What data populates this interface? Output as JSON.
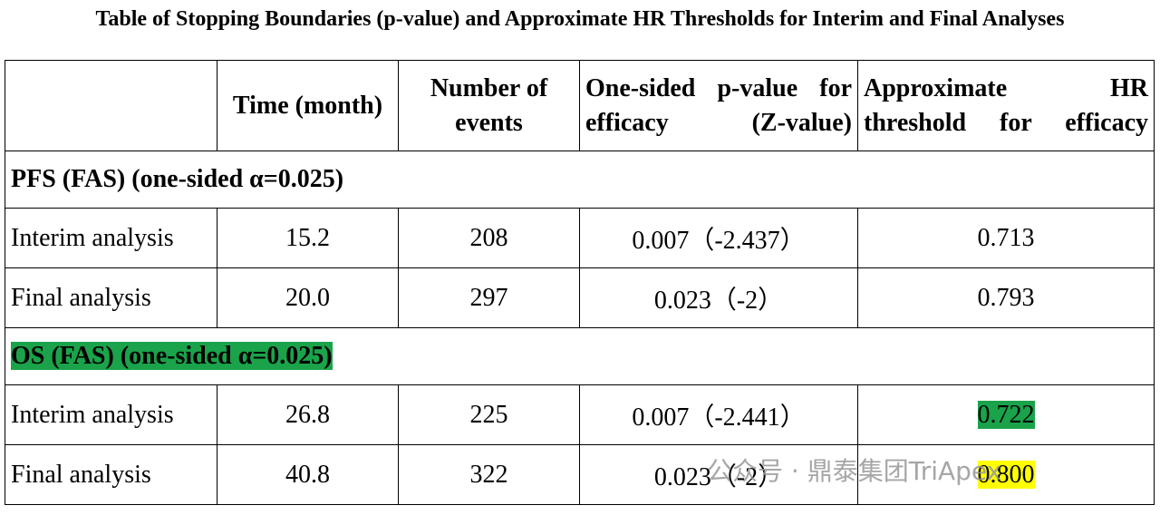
{
  "title": "Table of Stopping Boundaries (p-value) and Approximate HR Thresholds for Interim and Final Analyses",
  "table": {
    "header": [
      "",
      "Time (month)",
      "Number of events",
      "One-sided p-value for efficacy (Z-value)",
      "Approximate HR threshold for efficacy"
    ],
    "sections": [
      {
        "label": "PFS (FAS) (one-sided α=0.025)",
        "rows": [
          [
            "Interim analysis",
            "15.2",
            "208",
            "0.007（-2.437）",
            "0.713"
          ],
          [
            "Final analysis",
            "20.0",
            "297",
            "0.023（-2）",
            "0.793"
          ]
        ]
      },
      {
        "label": "OS (FAS) (one-sided α=0.025)",
        "rows": [
          [
            "Interim analysis",
            "26.8",
            "225",
            "0.007（-2.441）",
            "0.722"
          ],
          [
            "Final analysis",
            "40.8",
            "322",
            "0.023（-2）",
            "0.800"
          ]
        ]
      }
    ]
  },
  "watermark": "公众号 · 鼎泰集团TriApex"
}
